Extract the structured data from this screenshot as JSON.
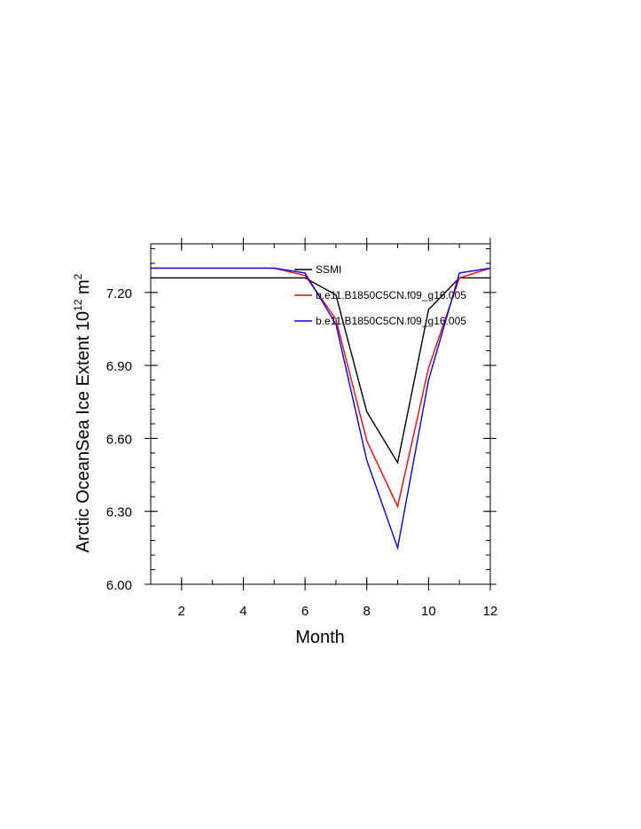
{
  "chart_data": {
    "type": "line",
    "xlabel": "Month",
    "ylabel": "Arctic OceanSea Ice Extent 10",
    "ylabel_sup": "12",
    "ylabel_unit": " m",
    "ylabel_unit_sup": "2",
    "xlim": [
      1,
      12
    ],
    "ylim": [
      6.0,
      7.4
    ],
    "xticks": [
      2,
      4,
      6,
      8,
      10,
      12
    ],
    "xtick_labels": [
      "2",
      "4",
      "6",
      "8",
      "10",
      "12"
    ],
    "yticks": [
      6.0,
      6.3,
      6.6,
      6.9,
      7.2
    ],
    "ytick_labels": [
      "6.00",
      "6.30",
      "6.60",
      "6.90",
      "7.20"
    ],
    "legend_position": "top-right",
    "series": [
      {
        "name": "SSMI",
        "color": "#000000",
        "x": [
          1,
          2,
          3,
          4,
          5,
          6,
          7,
          8,
          9,
          10,
          11,
          12
        ],
        "values": [
          7.26,
          7.26,
          7.26,
          7.26,
          7.26,
          7.26,
          7.19,
          6.71,
          6.5,
          7.13,
          7.26,
          7.26
        ]
      },
      {
        "name": "b.e11.B1850C5CN.f09_g16.005",
        "color": "#ff0000",
        "x": [
          1,
          2,
          3,
          4,
          5,
          6,
          7,
          8,
          9,
          10,
          11,
          12
        ],
        "values": [
          7.3,
          7.3,
          7.3,
          7.3,
          7.3,
          7.27,
          7.09,
          6.59,
          6.32,
          6.89,
          7.26,
          7.3
        ]
      },
      {
        "name": "b.e11.B1850C5CN.f09_g16.005",
        "color": "#0000ff",
        "x": [
          1,
          2,
          3,
          4,
          5,
          6,
          7,
          8,
          9,
          10,
          11,
          12
        ],
        "values": [
          7.3,
          7.3,
          7.3,
          7.3,
          7.3,
          7.28,
          7.07,
          6.51,
          6.15,
          6.84,
          7.28,
          7.3
        ]
      }
    ]
  }
}
